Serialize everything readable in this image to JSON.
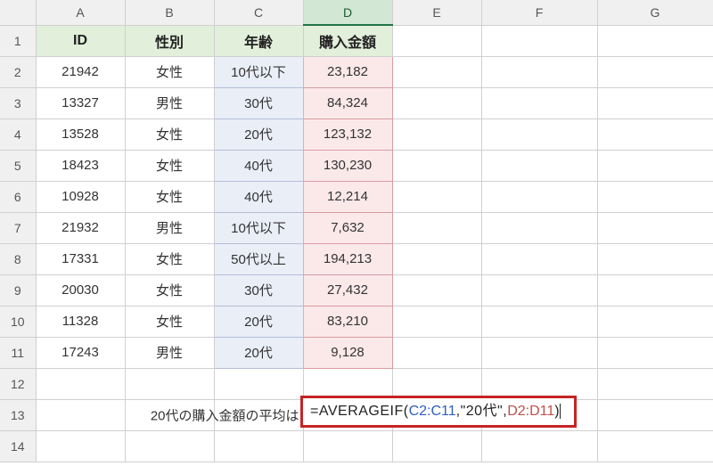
{
  "colLabels": [
    "A",
    "B",
    "C",
    "D",
    "E",
    "F",
    "G"
  ],
  "selectedCol": "D",
  "rowCount": 14,
  "headers": {
    "A": "ID",
    "B": "性別",
    "C": "年齢",
    "D": "購入金額"
  },
  "rows": [
    {
      "A": "21942",
      "B": "女性",
      "C": "10代以下",
      "D": "23,182"
    },
    {
      "A": "13327",
      "B": "男性",
      "C": "30代",
      "D": "84,324"
    },
    {
      "A": "13528",
      "B": "女性",
      "C": "20代",
      "D": "123,132"
    },
    {
      "A": "18423",
      "B": "女性",
      "C": "40代",
      "D": "130,230"
    },
    {
      "A": "10928",
      "B": "女性",
      "C": "40代",
      "D": "12,214"
    },
    {
      "A": "21932",
      "B": "男性",
      "C": "10代以下",
      "D": "7,632"
    },
    {
      "A": "17331",
      "B": "女性",
      "C": "50代以上",
      "D": "194,213"
    },
    {
      "A": "20030",
      "B": "女性",
      "C": "30代",
      "D": "27,432"
    },
    {
      "A": "11328",
      "B": "女性",
      "C": "20代",
      "D": "83,210"
    },
    {
      "A": "17243",
      "B": "男性",
      "C": "20代",
      "D": "9,128"
    }
  ],
  "row13": {
    "label": "20代の購入金額の平均は",
    "formula": {
      "eq": "=",
      "fn": "AVERAGEIF",
      "open": "(",
      "ref1": "C2:C11",
      "sep1": ",",
      "crit": "\"20代\"",
      "sep2": ",",
      "ref2": "D2:D11",
      "close": ")"
    }
  },
  "style": {
    "hdr_bg": "#e2efda",
    "colC_bg": "#eaeef7",
    "colD_bg": "#fbe9ea",
    "formula_ref1_color": "#2f5ec4",
    "formula_ref2_color": "#c0504d",
    "formula_box_border": "#c62424"
  }
}
